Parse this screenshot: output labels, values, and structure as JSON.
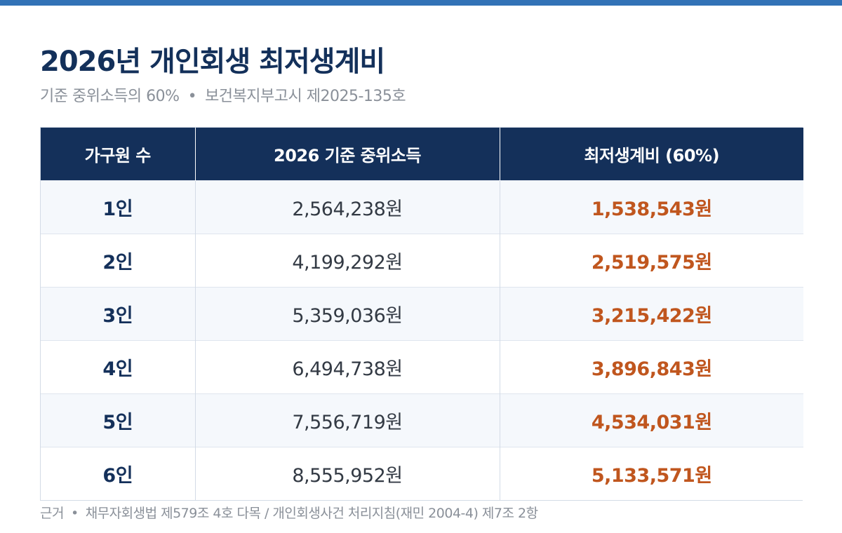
{
  "header": {
    "title": "2026년 개인회생 최저생계비",
    "subtitle_part1": "기준 중위소득의 60%",
    "separator": "•",
    "subtitle_part2": "보건복지부고시 제2025-135호"
  },
  "table": {
    "columns": [
      "가구원 수",
      "2026 기준 중위소득",
      "최저생계비 (60%)"
    ],
    "rows": [
      {
        "household": "1인",
        "median_income": "2,564,238원",
        "minimum_living_cost": "1,538,543원"
      },
      {
        "household": "2인",
        "median_income": "4,199,292원",
        "minimum_living_cost": "2,519,575원"
      },
      {
        "household": "3인",
        "median_income": "5,359,036원",
        "minimum_living_cost": "3,215,422원"
      },
      {
        "household": "4인",
        "median_income": "6,494,738원",
        "minimum_living_cost": "3,896,843원"
      },
      {
        "household": "5인",
        "median_income": "7,556,719원",
        "minimum_living_cost": "4,534,031원"
      },
      {
        "household": "6인",
        "median_income": "8,555,952원",
        "minimum_living_cost": "5,133,571원"
      }
    ]
  },
  "footer": {
    "label": "근거",
    "separator": "•",
    "text": "채무자회생법 제579조 4호 다목 / 개인회생사건 처리지침(재민 2004-4) 제7조 2항"
  },
  "colors": {
    "accent_bar": "#3272b6",
    "header_bg": "#14305a",
    "title": "#13305a",
    "highlight_value": "#c0561e"
  }
}
